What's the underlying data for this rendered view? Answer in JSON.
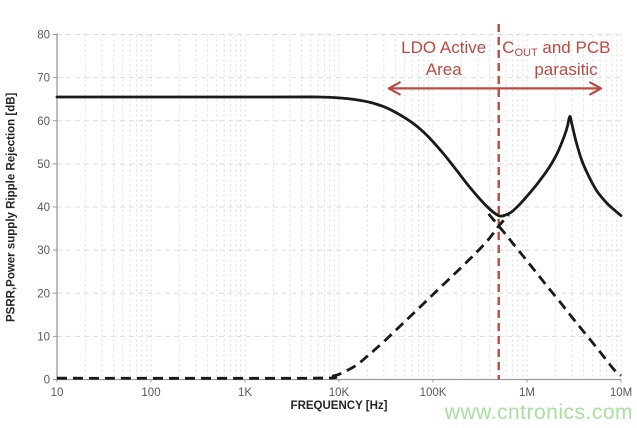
{
  "figure": {
    "watermark": "www.cntronics.com"
  },
  "colors": {
    "curve": "#1a1a1a",
    "red": "#bc4a42",
    "grid": "#dcdcdc",
    "axis": "#9a9a9a",
    "ticktext": "#595959",
    "axistitle": "#262626",
    "watermark": "#a8e09e"
  },
  "chart_data": {
    "type": "line",
    "title": "",
    "xlabel": "FREQUENCY [Hz]",
    "ylabel": "PSRR,Power supply Ripple Rejection [dB]",
    "x_scale": "log",
    "xlim": [
      10,
      10000000
    ],
    "ylim": [
      0,
      80
    ],
    "grid": {
      "show": true,
      "horizontal_step": 10,
      "minor_log_verticals": true
    },
    "y_ticks": [
      0,
      10,
      20,
      30,
      40,
      50,
      60,
      70,
      80
    ],
    "x_ticks": [
      {
        "value": 10,
        "label": "10"
      },
      {
        "value": 100,
        "label": "100"
      },
      {
        "value": 1000,
        "label": "1K"
      },
      {
        "value": 10000,
        "label": "10K"
      },
      {
        "value": 100000,
        "label": "100K"
      },
      {
        "value": 1000000,
        "label": "1M"
      },
      {
        "value": 10000000,
        "label": "10M"
      }
    ],
    "legend": "none",
    "series": [
      {
        "name": "psrr-response-solid",
        "style": "solid",
        "points": [
          [
            10,
            65.5
          ],
          [
            2000,
            65.5
          ],
          [
            6000,
            65.5
          ],
          [
            10000,
            65.3
          ],
          [
            15000,
            64.9
          ],
          [
            22000,
            64.2
          ],
          [
            32000,
            63.0
          ],
          [
            45000,
            61.3
          ],
          [
            65000,
            59.0
          ],
          [
            90000,
            56.2
          ],
          [
            130000,
            52.3
          ],
          [
            180000,
            48.4
          ],
          [
            250000,
            44.4
          ],
          [
            350000,
            40.8
          ],
          [
            450000,
            38.6
          ],
          [
            520000,
            37.9
          ],
          [
            600000,
            38.2
          ],
          [
            700000,
            39.0
          ],
          [
            850000,
            40.8
          ],
          [
            1000000,
            42.5
          ],
          [
            1300000,
            45.5
          ],
          [
            1700000,
            49.0
          ],
          [
            2100000,
            52.5
          ],
          [
            2500000,
            56.5
          ],
          [
            2700000,
            58.8
          ],
          [
            2850000,
            61.0
          ],
          [
            3000000,
            59.3
          ],
          [
            3300000,
            55.5
          ],
          [
            3800000,
            51.0
          ],
          [
            4500000,
            47.3
          ],
          [
            5500000,
            43.8
          ],
          [
            7000000,
            41.0
          ],
          [
            8500000,
            39.3
          ],
          [
            10000000,
            38.0
          ]
        ]
      },
      {
        "name": "cout-impedance-rising-dashed",
        "style": "dashed",
        "points": [
          [
            10,
            0.3
          ],
          [
            5000,
            0.3
          ],
          [
            8000,
            0.7
          ],
          [
            10000,
            1.2
          ],
          [
            15000,
            3.2
          ],
          [
            20000,
            5.4
          ],
          [
            30000,
            8.8
          ],
          [
            50000,
            13.4
          ],
          [
            100000,
            19.7
          ],
          [
            200000,
            26.0
          ],
          [
            300000,
            29.8
          ],
          [
            400000,
            32.8
          ],
          [
            500000,
            35.6
          ],
          [
            640000,
            38.2
          ]
        ]
      },
      {
        "name": "parasitic-falling-dashed",
        "style": "dashed",
        "points": [
          [
            390000,
            38.4
          ],
          [
            500000,
            35.6
          ],
          [
            600000,
            33.5
          ],
          [
            700000,
            31.7
          ],
          [
            850000,
            29.4
          ],
          [
            1000000,
            27.5
          ],
          [
            1300000,
            24.4
          ],
          [
            1700000,
            21.2
          ],
          [
            2200000,
            18.2
          ],
          [
            3000000,
            14.5
          ],
          [
            4000000,
            11.1
          ],
          [
            5500000,
            7.4
          ],
          [
            7000000,
            4.5
          ],
          [
            8500000,
            2.2
          ],
          [
            10000000,
            0.9
          ]
        ]
      }
    ],
    "annotations": {
      "divider_line": {
        "x": 500000,
        "style": "dashed"
      },
      "span_arrow": {
        "x1": 33000,
        "x2": 6300000,
        "y": 67.5,
        "double_headed": true
      },
      "left_label": {
        "lines": [
          "LDO Active",
          "Area"
        ],
        "x": 130000
      },
      "right_label": {
        "line1": [
          {
            "t": "C"
          },
          {
            "t": "OUT",
            "sub": true
          },
          {
            "t": " and PCB"
          }
        ],
        "line2": "parasitic",
        "x": 2050000,
        "x2": 2600000
      }
    }
  }
}
